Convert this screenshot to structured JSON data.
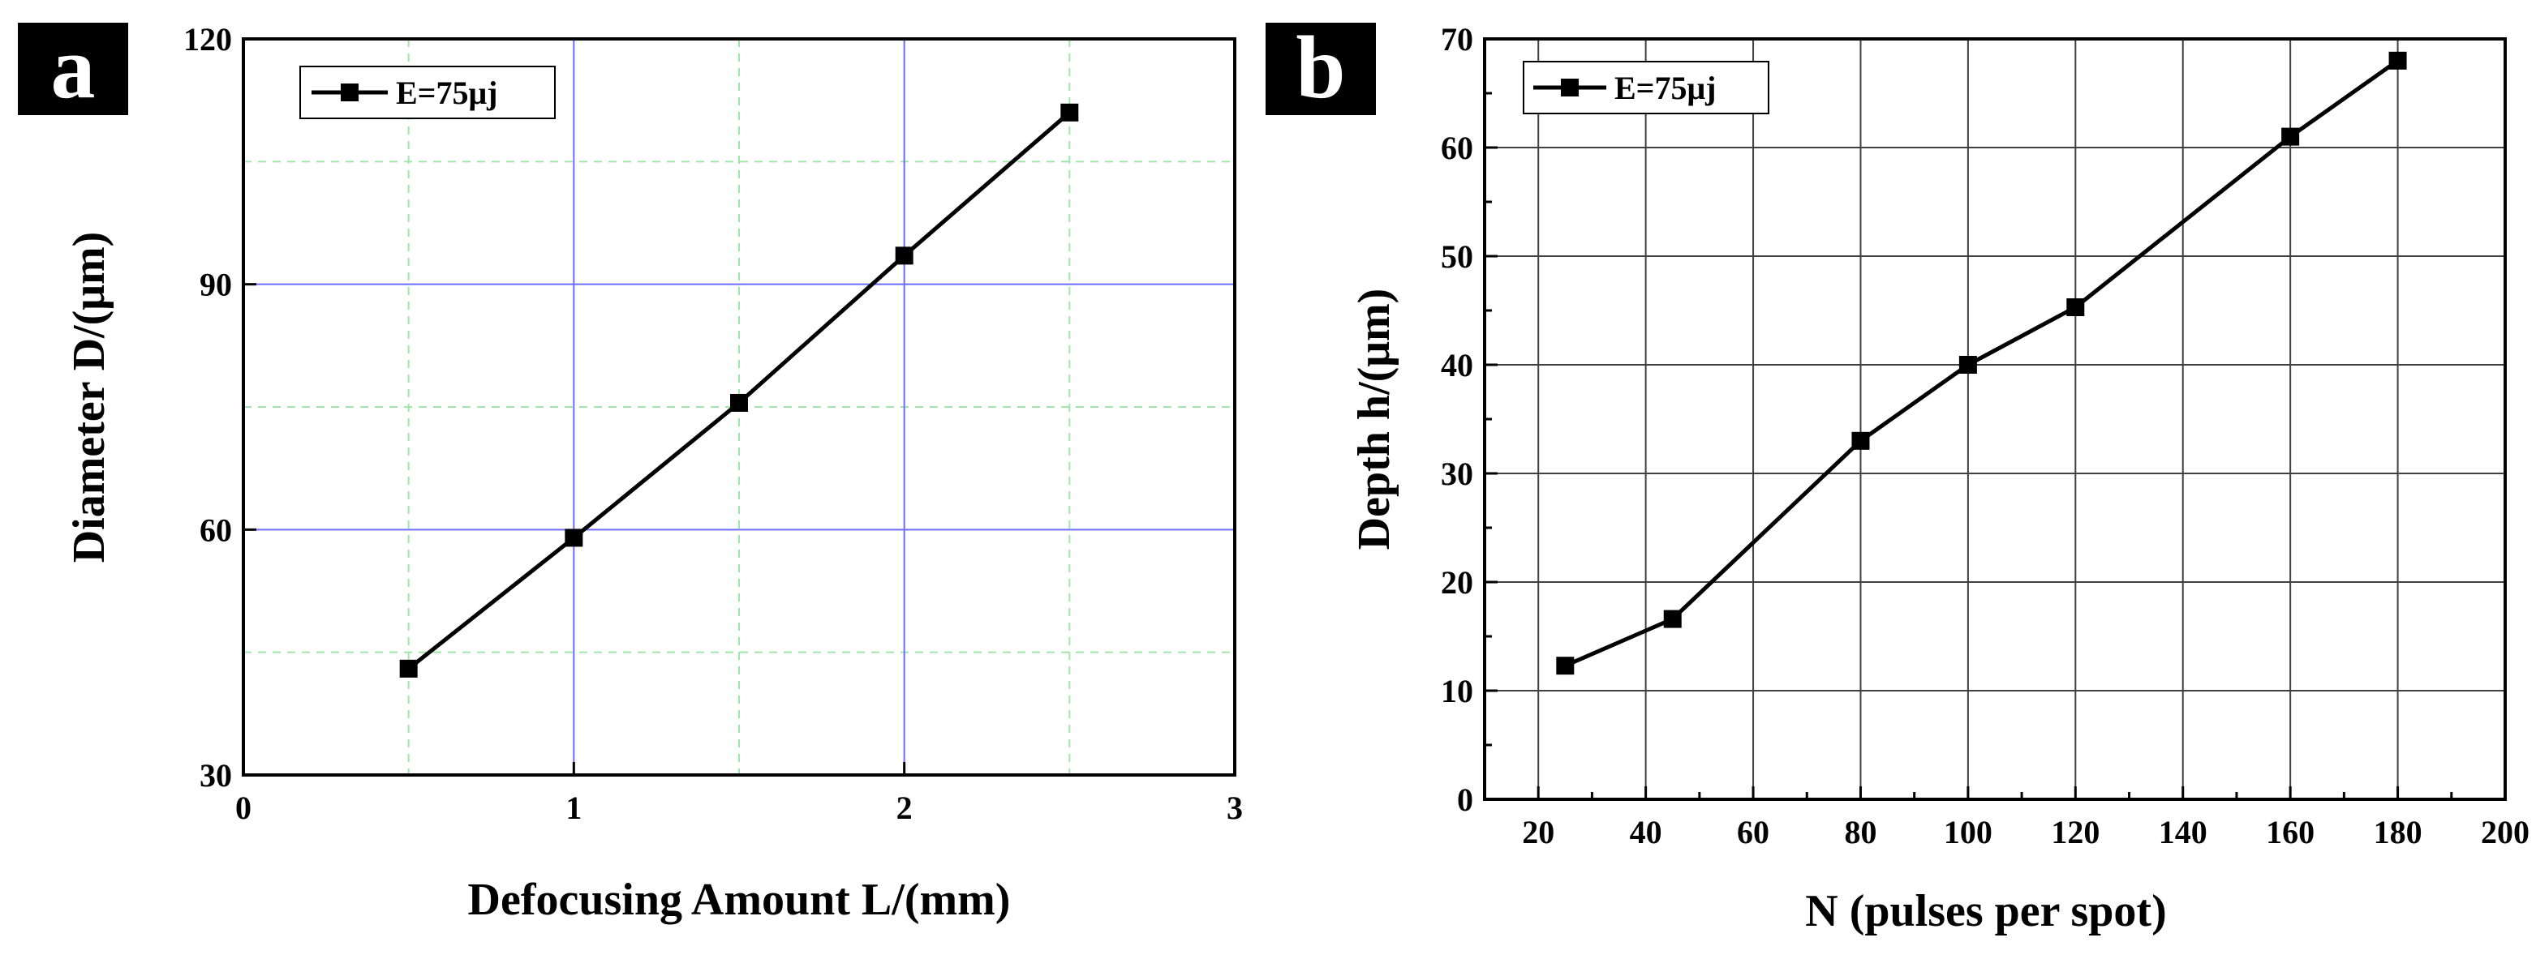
{
  "figure": {
    "panels": [
      "a",
      "b"
    ]
  },
  "chart_data": [
    {
      "panel": "a",
      "type": "line",
      "title": "",
      "xlabel": "Defocusing Amount L/(mm)",
      "ylabel": "Diameter D/(μm)",
      "xlim": [
        0,
        3
      ],
      "ylim": [
        30,
        120
      ],
      "xticks": [
        0,
        1,
        2,
        3
      ],
      "yticks": [
        30,
        60,
        90,
        120
      ],
      "grid": true,
      "grid_major_color": "#6b6bff",
      "grid_minor_color": "#9fe7a8",
      "legend": {
        "placement": "top-left",
        "entries": [
          "E=75μj"
        ]
      },
      "series": [
        {
          "name": "E=75μj",
          "color": "#000000",
          "marker": "square",
          "x": [
            0.5,
            1.0,
            1.5,
            2.0,
            2.5
          ],
          "y": [
            43,
            59,
            75.5,
            93.5,
            111
          ]
        }
      ]
    },
    {
      "panel": "b",
      "type": "line",
      "title": "",
      "xlabel": "N (pulses per spot)",
      "ylabel": "Depth h/(μm)",
      "xlim": [
        10,
        200
      ],
      "ylim": [
        0,
        70
      ],
      "xticks": [
        20,
        40,
        60,
        80,
        100,
        120,
        140,
        160,
        180,
        200
      ],
      "yticks": [
        0,
        10,
        20,
        30,
        40,
        50,
        60,
        70
      ],
      "grid": true,
      "grid_major_color": "#404040",
      "legend": {
        "placement": "top-left",
        "entries": [
          "E=75μj"
        ]
      },
      "series": [
        {
          "name": "E=75μj",
          "color": "#000000",
          "marker": "square",
          "x": [
            25,
            45,
            80,
            100,
            120,
            160,
            180
          ],
          "y": [
            12.3,
            16.6,
            33,
            40,
            45.3,
            61,
            68
          ]
        }
      ]
    }
  ]
}
